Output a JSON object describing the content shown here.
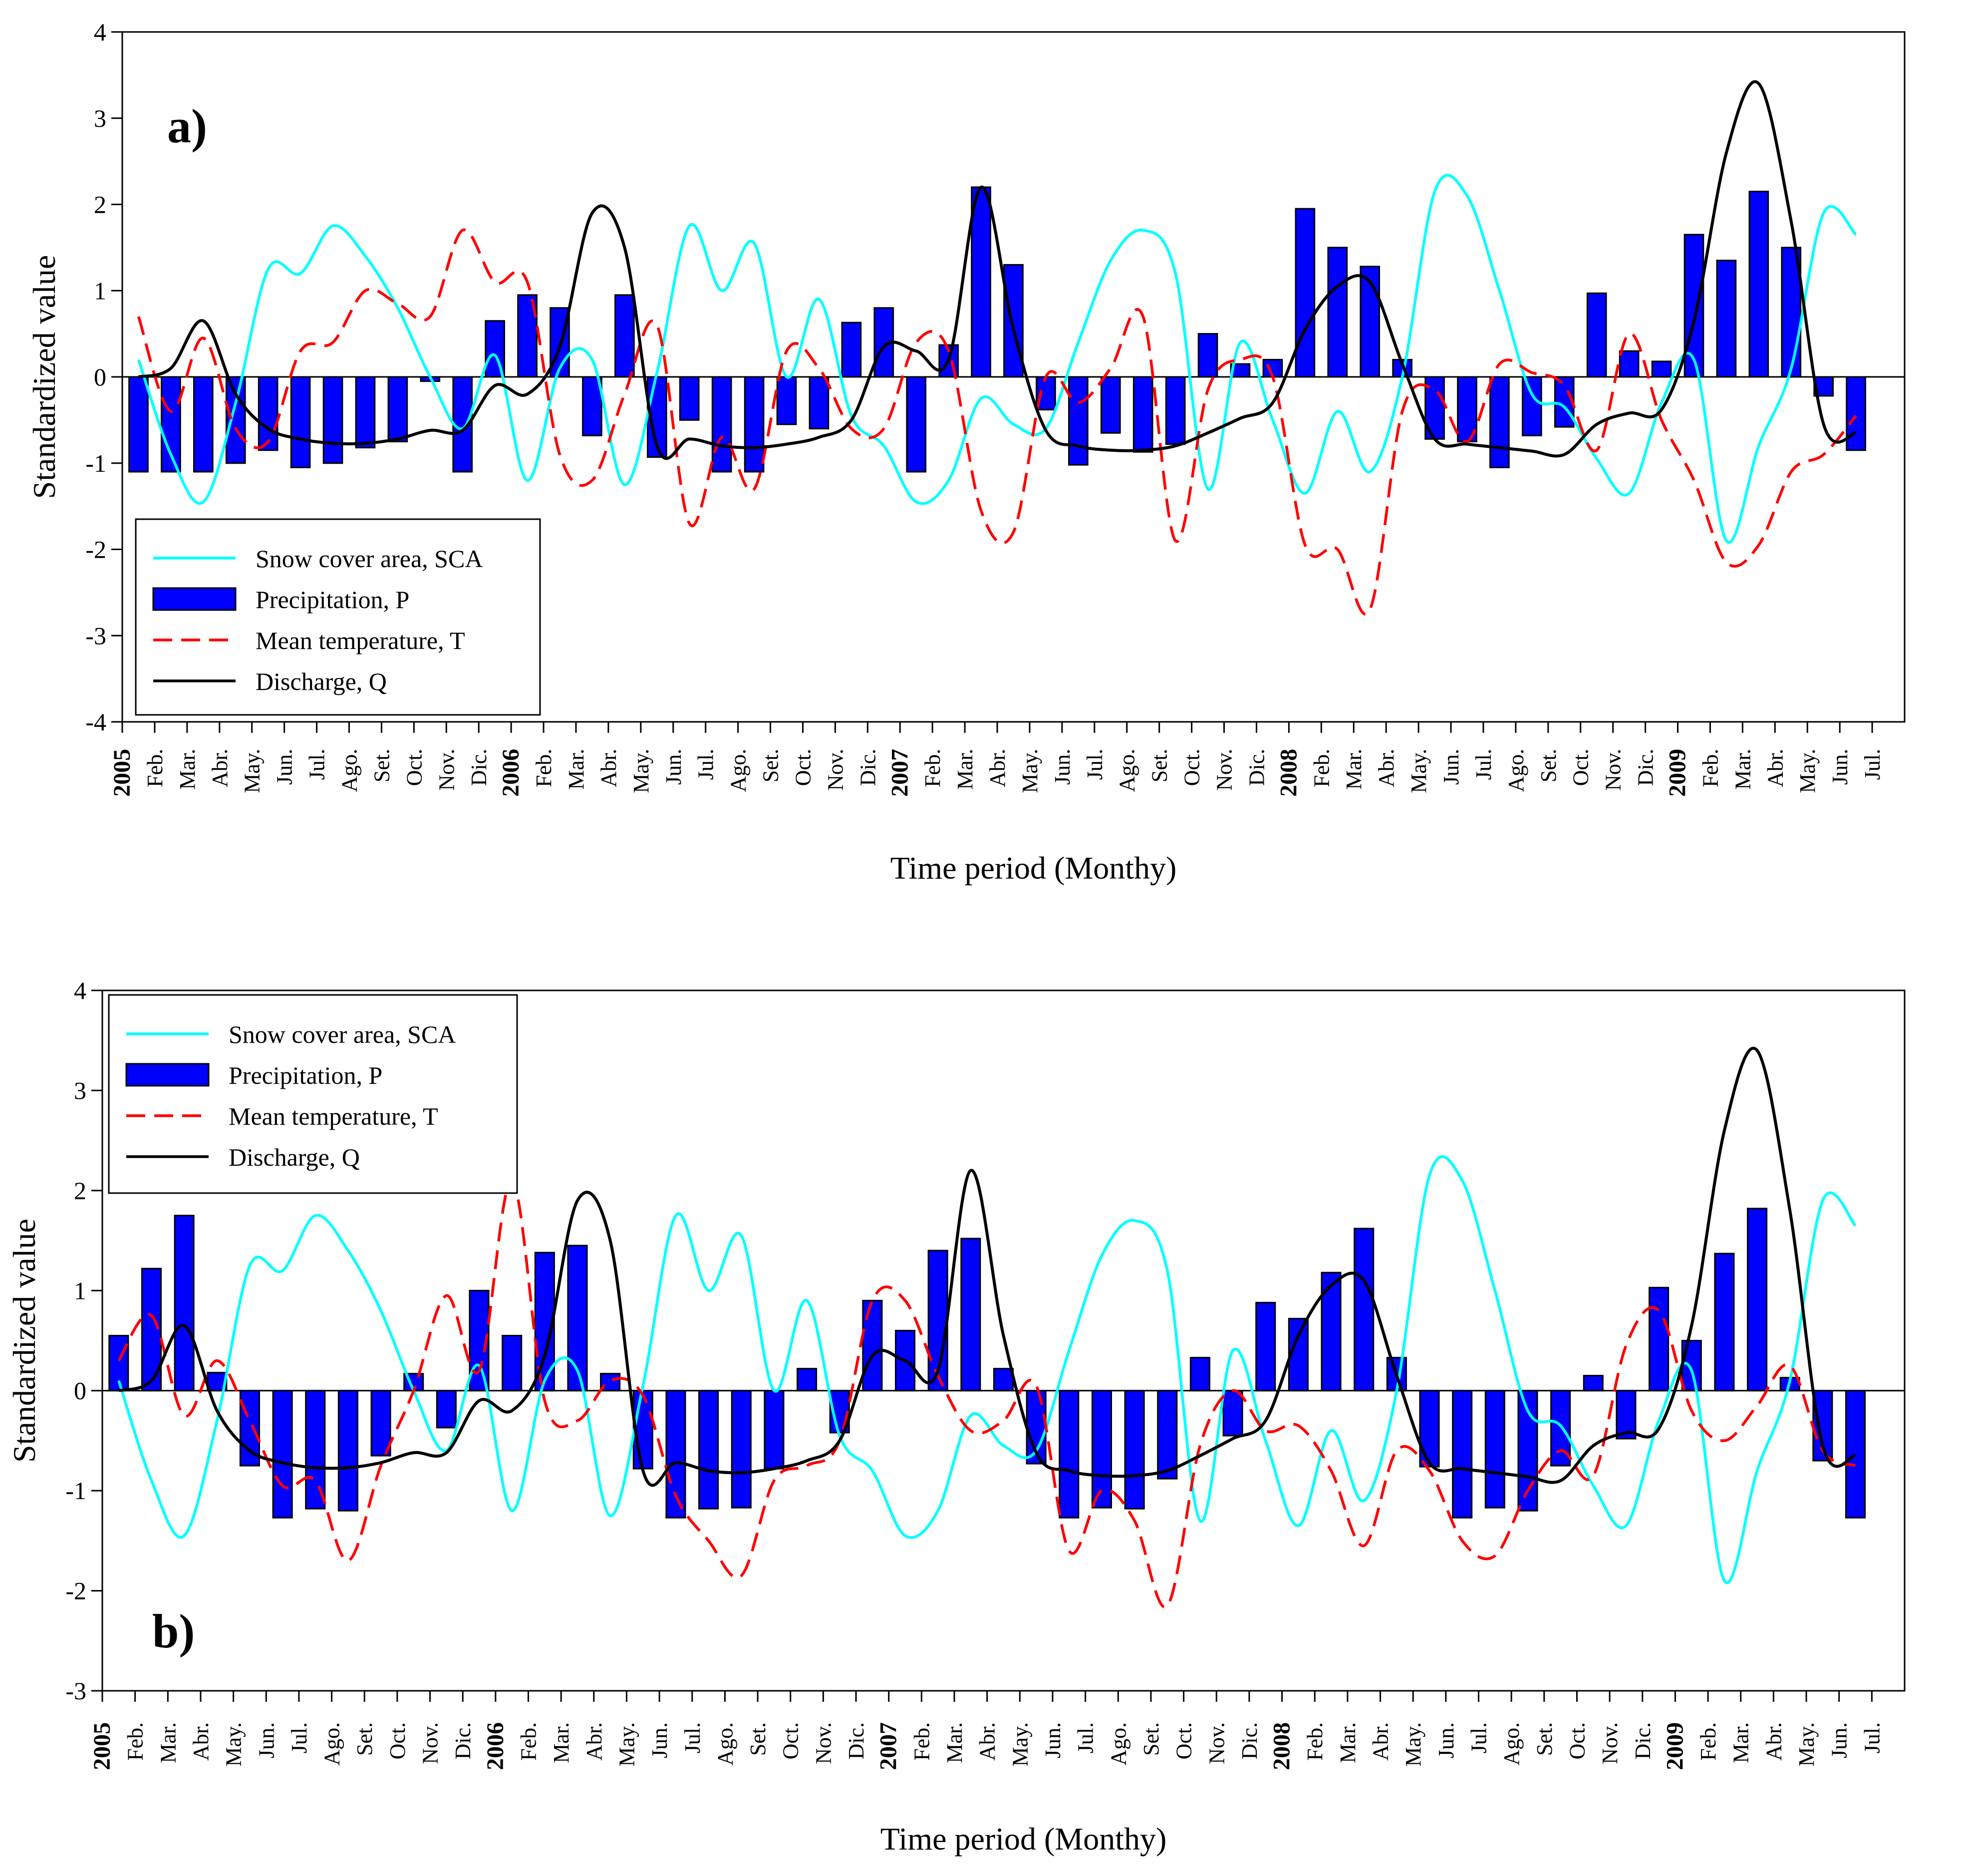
{
  "chart_data": [
    {
      "type": "bar",
      "panel_label": "a)",
      "ylabel": "Standardized value",
      "xlabel": "Time period (Monthy)",
      "ylim": [
        -4,
        4
      ],
      "yticks": [
        "-4",
        "-3",
        "-2",
        "-1",
        "0",
        "1",
        "2",
        "3",
        "4"
      ],
      "legend_position": "bottom-left",
      "tick_labels": [
        "2005",
        "Feb.",
        "Mar.",
        "Abr.",
        "May.",
        "Jun.",
        "Jul.",
        "Ago.",
        "Set.",
        "Oct.",
        "Nov.",
        "Dic.",
        "2006",
        "Feb.",
        "Mar.",
        "Abr.",
        "May.",
        "Jun.",
        "Jul.",
        "Ago.",
        "Set.",
        "Oct.",
        "Nov.",
        "Dic.",
        "2007",
        "Feb.",
        "Mar.",
        "Abr.",
        "May.",
        "Jun.",
        "Jul.",
        "Ago.",
        "Set.",
        "Oct.",
        "Nov.",
        "Dic.",
        "2008",
        "Feb.",
        "Mar.",
        "Abr.",
        "May.",
        "Jun.",
        "Jul.",
        "Ago.",
        "Set.",
        "Oct.",
        "Nov.",
        "Dic.",
        "2009",
        "Feb.",
        "Mar.",
        "Abr.",
        "May.",
        "Jun.",
        "Jul."
      ],
      "legend": [
        "Snow cover area, SCA",
        "Precipitation, P",
        "Mean temperature, T",
        "Discharge, Q"
      ],
      "series": [
        {
          "name": "Snow cover area, SCA",
          "kind": "line",
          "color": "#00ffff",
          "dash": "solid",
          "values": [
            0.2,
            -0.9,
            -1.45,
            -0.3,
            1.25,
            1.2,
            1.75,
            1.4,
            0.8,
            0.0,
            -0.6,
            0.25,
            -1.2,
            0.1,
            0.2,
            -1.25,
            0.05,
            1.75,
            1.0,
            1.55,
            0.0,
            0.9,
            -0.45,
            -0.8,
            -1.45,
            -1.2,
            -0.25,
            -0.55,
            -0.6,
            0.4,
            1.35,
            1.7,
            1.2,
            -1.3,
            0.4,
            -0.5,
            -1.35,
            -0.4,
            -1.1,
            0.0,
            2.15,
            2.1,
            1.0,
            -0.2,
            -0.35,
            -0.95,
            -1.35,
            -0.3,
            0.2,
            -1.9,
            -0.8,
            0.1,
            1.9,
            1.65
          ]
        },
        {
          "name": "Precipitation, P",
          "kind": "bar",
          "color": "#0000ff",
          "values": [
            -1.1,
            -1.1,
            -1.1,
            -1.0,
            -0.85,
            -1.05,
            -1.0,
            -0.82,
            -0.75,
            -0.05,
            -1.1,
            0.65,
            0.95,
            0.8,
            -0.68,
            0.95,
            -0.93,
            -0.5,
            -1.1,
            -1.1,
            -0.55,
            -0.6,
            0.63,
            0.8,
            -1.1,
            0.37,
            2.2,
            1.3,
            -0.38,
            -1.02,
            -0.65,
            -0.87,
            -0.78,
            0.5,
            0.15,
            0.2,
            1.95,
            1.5,
            1.28,
            0.2,
            -0.72,
            -0.75,
            -1.05,
            -0.68,
            -0.58,
            0.97,
            0.3,
            0.18,
            1.65,
            1.35,
            2.15,
            1.5,
            -0.22,
            -0.85
          ]
        },
        {
          "name": "Mean temperature, T",
          "kind": "line",
          "color": "#ff0000",
          "dash": "dashed",
          "values": [
            0.7,
            -0.4,
            0.45,
            -0.6,
            -0.75,
            0.3,
            0.4,
            1.0,
            0.85,
            0.7,
            1.7,
            1.1,
            1.1,
            -0.9,
            -1.2,
            -0.2,
            0.6,
            -1.7,
            -0.7,
            -1.3,
            0.3,
            0.1,
            -0.6,
            -0.6,
            0.4,
            0.3,
            -1.55,
            -1.8,
            0.0,
            -0.3,
            0.1,
            0.7,
            -1.9,
            -0.15,
            0.2,
            0.0,
            -1.95,
            -2.0,
            -2.7,
            -0.4,
            -0.15,
            -0.75,
            0.15,
            0.05,
            -0.1,
            -0.85,
            0.5,
            -0.5,
            -1.2,
            -2.15,
            -1.95,
            -1.1,
            -0.9,
            -0.45
          ]
        },
        {
          "name": "Discharge, Q",
          "kind": "line",
          "color": "#000000",
          "dash": "solid",
          "values": [
            0.0,
            0.1,
            0.65,
            -0.2,
            -0.6,
            -0.72,
            -0.77,
            -0.77,
            -0.72,
            -0.62,
            -0.62,
            -0.1,
            -0.2,
            0.35,
            1.9,
            1.5,
            -0.8,
            -0.72,
            -0.8,
            -0.82,
            -0.78,
            -0.7,
            -0.5,
            0.35,
            0.3,
            0.2,
            2.2,
            0.55,
            -0.62,
            -0.8,
            -0.85,
            -0.85,
            -0.8,
            -0.65,
            -0.48,
            -0.3,
            0.55,
            1.05,
            1.1,
            0.15,
            -0.72,
            -0.78,
            -0.82,
            -0.86,
            -0.9,
            -0.55,
            -0.42,
            -0.38,
            0.65,
            2.6,
            3.4,
            1.8,
            -0.55,
            -0.65
          ]
        }
      ]
    },
    {
      "type": "bar",
      "panel_label": "b)",
      "ylabel": "Standardized value",
      "xlabel": "Time period (Monthy)",
      "ylim": [
        -3,
        4
      ],
      "yticks": [
        "-3",
        "-2",
        "-1",
        "0",
        "1",
        "2",
        "3",
        "4"
      ],
      "legend_position": "top-left",
      "tick_labels": [
        "2005",
        "Feb.",
        "Mar.",
        "Abr.",
        "May.",
        "Jun.",
        "Jul.",
        "Ago.",
        "Set.",
        "Oct.",
        "Nov.",
        "Dic.",
        "2006",
        "Feb.",
        "Mar.",
        "Abr.",
        "May.",
        "Jun.",
        "Jul.",
        "Ago.",
        "Set.",
        "Oct.",
        "Nov.",
        "Dic.",
        "2007",
        "Feb.",
        "Mar.",
        "Abr.",
        "May.",
        "Jun.",
        "Jul.",
        "Ago.",
        "Set.",
        "Oct.",
        "Nov.",
        "Dic.",
        "2008",
        "Feb.",
        "Mar.",
        "Abr.",
        "May.",
        "Jun.",
        "Jul.",
        "Ago.",
        "Set.",
        "Oct.",
        "Nov.",
        "Dic.",
        "2009",
        "Feb.",
        "Mar.",
        "Abr.",
        "May.",
        "Jun.",
        "Jul."
      ],
      "legend": [
        "Snow cover area, SCA",
        "Precipitation, P",
        "Mean temperature, T",
        "Discharge, Q"
      ],
      "series": [
        {
          "name": "Snow cover area, SCA",
          "kind": "line",
          "color": "#00ffff",
          "dash": "solid",
          "values": [
            0.1,
            -0.9,
            -1.45,
            -0.3,
            1.25,
            1.2,
            1.75,
            1.4,
            0.8,
            0.0,
            -0.6,
            0.25,
            -1.2,
            0.1,
            0.2,
            -1.25,
            0.05,
            1.75,
            1.0,
            1.55,
            0.0,
            0.9,
            -0.45,
            -0.8,
            -1.45,
            -1.2,
            -0.25,
            -0.55,
            -0.6,
            0.4,
            1.35,
            1.7,
            1.2,
            -1.3,
            0.4,
            -0.5,
            -1.35,
            -0.4,
            -1.1,
            0.0,
            2.15,
            2.1,
            1.0,
            -0.2,
            -0.35,
            -0.95,
            -1.35,
            -0.3,
            0.2,
            -1.9,
            -0.8,
            0.1,
            1.9,
            1.65
          ]
        },
        {
          "name": "Precipitation, P",
          "kind": "bar",
          "color": "#0000ff",
          "values": [
            0.55,
            1.22,
            1.75,
            0.18,
            -0.75,
            -1.27,
            -1.18,
            -1.2,
            -0.65,
            0.17,
            -0.37,
            1.0,
            0.55,
            1.38,
            1.45,
            0.17,
            -0.78,
            -1.27,
            -1.18,
            -1.17,
            -0.78,
            0.22,
            -0.42,
            0.9,
            0.6,
            1.4,
            1.52,
            0.22,
            -0.73,
            -1.27,
            -1.17,
            -1.18,
            -0.88,
            0.33,
            -0.45,
            0.88,
            0.72,
            1.18,
            1.62,
            0.33,
            -0.76,
            -1.27,
            -1.17,
            -1.2,
            -0.75,
            0.15,
            -0.48,
            1.03,
            0.5,
            1.37,
            1.82,
            0.13,
            -0.7,
            -1.27
          ]
        },
        {
          "name": "Mean temperature, T",
          "kind": "line",
          "color": "#ff0000",
          "dash": "dashed",
          "values": [
            0.3,
            0.75,
            -0.25,
            0.3,
            -0.3,
            -0.95,
            -0.9,
            -1.7,
            -0.75,
            0.0,
            0.95,
            0.2,
            2.1,
            -0.1,
            -0.3,
            0.1,
            -0.05,
            -1.05,
            -1.5,
            -1.85,
            -0.9,
            -0.75,
            -0.5,
            0.9,
            0.9,
            0.15,
            -0.4,
            -0.3,
            0.05,
            -1.6,
            -1.0,
            -1.3,
            -2.15,
            -0.55,
            0.0,
            -0.4,
            -0.35,
            -0.8,
            -1.55,
            -0.6,
            -0.8,
            -1.5,
            -1.65,
            -1.0,
            -0.6,
            -0.85,
            0.45,
            0.8,
            -0.2,
            -0.5,
            -0.15,
            0.25,
            -0.6,
            -0.75
          ]
        },
        {
          "name": "Discharge, Q",
          "kind": "line",
          "color": "#000000",
          "dash": "solid",
          "values": [
            0.0,
            0.1,
            0.65,
            -0.2,
            -0.6,
            -0.72,
            -0.77,
            -0.77,
            -0.72,
            -0.62,
            -0.62,
            -0.1,
            -0.2,
            0.35,
            1.9,
            1.5,
            -0.8,
            -0.72,
            -0.8,
            -0.82,
            -0.78,
            -0.7,
            -0.5,
            0.35,
            0.3,
            0.2,
            2.2,
            0.55,
            -0.62,
            -0.8,
            -0.85,
            -0.85,
            -0.8,
            -0.65,
            -0.48,
            -0.3,
            0.55,
            1.05,
            1.1,
            0.15,
            -0.72,
            -0.78,
            -0.82,
            -0.86,
            -0.9,
            -0.55,
            -0.42,
            -0.38,
            0.65,
            2.6,
            3.4,
            1.8,
            -0.55,
            -0.65
          ]
        }
      ]
    }
  ]
}
